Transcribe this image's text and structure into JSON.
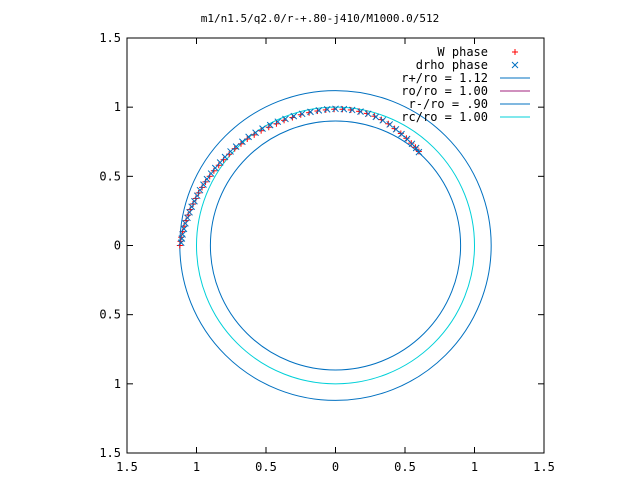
{
  "chart_data": {
    "type": "scatter",
    "title": "m1/n1.5/q2.0/r-+.80-j410/M1000.0/512",
    "xlabel": "",
    "ylabel": "",
    "xlim": [
      -1.5,
      1.5
    ],
    "ylim": [
      -1.5,
      1.5
    ],
    "grid": false,
    "legend_position": "top-right",
    "x_ticks": [
      {
        "value": -1.5,
        "label": "1.5"
      },
      {
        "value": -1.0,
        "label": "1"
      },
      {
        "value": -0.5,
        "label": "0.5"
      },
      {
        "value": 0.0,
        "label": "0"
      },
      {
        "value": 0.5,
        "label": "0.5"
      },
      {
        "value": 1.0,
        "label": "1"
      },
      {
        "value": 1.5,
        "label": "1.5"
      }
    ],
    "y_ticks": [
      {
        "value": 1.5,
        "label": "1.5"
      },
      {
        "value": 1.0,
        "label": "1"
      },
      {
        "value": 0.5,
        "label": "0.5"
      },
      {
        "value": 0.0,
        "label": "0"
      },
      {
        "value": -0.5,
        "label": "0.5"
      },
      {
        "value": -1.0,
        "label": "1"
      },
      {
        "value": -1.5,
        "label": "1.5"
      }
    ],
    "series": [
      {
        "name": "W phase",
        "kind": "points",
        "marker": "plus",
        "color": "#ff0000",
        "x": [
          -1.12,
          -1.115,
          -1.11,
          -1.1,
          -1.09,
          -1.075,
          -1.06,
          -1.045,
          -1.025,
          -1.005,
          -0.985,
          -0.96,
          -0.935,
          -0.905,
          -0.875,
          -0.84,
          -0.805,
          -0.765,
          -0.725,
          -0.68,
          -0.635,
          -0.585,
          -0.535,
          -0.48,
          -0.425,
          -0.37,
          -0.31,
          -0.25,
          -0.19,
          -0.13,
          -0.07,
          -0.01,
          0.05,
          0.11,
          0.17,
          0.225,
          0.28,
          0.33,
          0.38,
          0.425,
          0.47,
          0.51,
          0.545,
          0.575,
          0.6
        ],
        "y": [
          0.0,
          0.03,
          0.06,
          0.1,
          0.14,
          0.18,
          0.22,
          0.26,
          0.3,
          0.34,
          0.38,
          0.42,
          0.46,
          0.5,
          0.54,
          0.58,
          0.62,
          0.66,
          0.7,
          0.735,
          0.77,
          0.8,
          0.83,
          0.855,
          0.88,
          0.905,
          0.925,
          0.945,
          0.96,
          0.972,
          0.98,
          0.985,
          0.985,
          0.98,
          0.97,
          0.955,
          0.935,
          0.91,
          0.88,
          0.845,
          0.81,
          0.775,
          0.74,
          0.71,
          0.68
        ]
      },
      {
        "name": "drho phase",
        "kind": "points",
        "marker": "cross",
        "color": "#0070c0",
        "x": [
          -1.11,
          -1.105,
          -1.1,
          -1.09,
          -1.08,
          -1.065,
          -1.05,
          -1.035,
          -1.015,
          -0.995,
          -0.975,
          -0.95,
          -0.925,
          -0.895,
          -0.865,
          -0.83,
          -0.795,
          -0.755,
          -0.715,
          -0.67,
          -0.625,
          -0.575,
          -0.525,
          -0.47,
          -0.415,
          -0.36,
          -0.3,
          -0.24,
          -0.18,
          -0.12,
          -0.06,
          0.0,
          0.06,
          0.12,
          0.18,
          0.235,
          0.29,
          0.34,
          0.39,
          0.435,
          0.475,
          0.515,
          0.55,
          0.58,
          0.6
        ],
        "y": [
          0.02,
          0.05,
          0.08,
          0.12,
          0.16,
          0.2,
          0.24,
          0.28,
          0.32,
          0.36,
          0.4,
          0.44,
          0.48,
          0.52,
          0.56,
          0.6,
          0.64,
          0.68,
          0.715,
          0.75,
          0.785,
          0.815,
          0.845,
          0.87,
          0.895,
          0.915,
          0.935,
          0.952,
          0.966,
          0.977,
          0.984,
          0.988,
          0.986,
          0.98,
          0.968,
          0.952,
          0.93,
          0.905,
          0.875,
          0.84,
          0.805,
          0.77,
          0.735,
          0.705,
          0.675
        ]
      },
      {
        "name": "r+/ro = 1.12",
        "kind": "circle",
        "radius": 1.12,
        "color": "#0070c0"
      },
      {
        "name": "ro/ro = 1.00",
        "kind": "circle",
        "radius": 1.0,
        "color": "#a0207c",
        "visible_in_plot": false
      },
      {
        "name": "r-/ro = .90",
        "kind": "circle",
        "radius": 0.9,
        "color": "#0070c0"
      },
      {
        "name": "rc/ro = 1.00",
        "kind": "circle",
        "radius": 1.0,
        "color": "#00d0d8"
      }
    ]
  }
}
